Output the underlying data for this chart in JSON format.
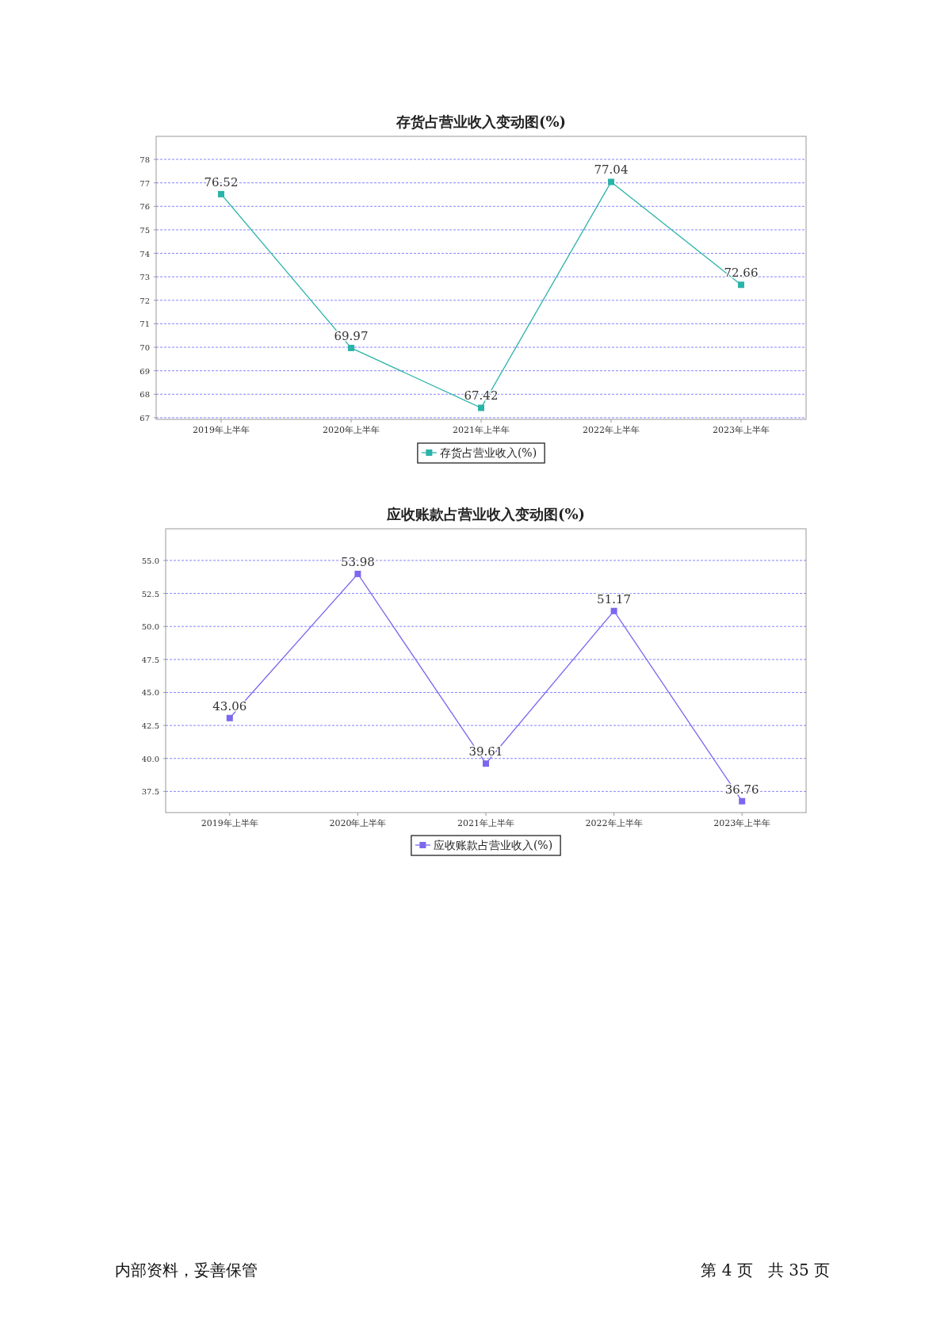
{
  "chart_data": [
    {
      "type": "line",
      "title": "存货占营业收入变动图(%)",
      "categories": [
        "2019年上半年",
        "2020年上半年",
        "2021年上半年",
        "2022年上半年",
        "2023年上半年"
      ],
      "series": [
        {
          "name": "存货占营业收入(%)",
          "color": "#2ab3a8",
          "values": [
            76.52,
            69.97,
            67.42,
            77.04,
            72.66
          ]
        }
      ],
      "ylim": [
        66.93,
        78.98
      ],
      "yticks": [
        67,
        68,
        69,
        70,
        71,
        72,
        73,
        74,
        75,
        76,
        77,
        78
      ],
      "grid": "y",
      "legend": "bottom",
      "marker": "square",
      "data_labels": true
    },
    {
      "type": "line",
      "title": "应收账款占营业收入变动图(%)",
      "categories": [
        "2019年上半年",
        "2020年上半年",
        "2021年上半年",
        "2022年上半年",
        "2023年上半年"
      ],
      "series": [
        {
          "name": "应收账款占营业收入(%)",
          "color": "#7b68ee",
          "values": [
            43.06,
            53.98,
            39.61,
            51.17,
            36.76
          ]
        }
      ],
      "ylim": [
        35.9,
        57.4
      ],
      "yticks": [
        {
          "value": 37.5,
          "label": "37.5"
        },
        {
          "value": 40,
          "label": "40.0"
        },
        {
          "value": 42.5,
          "label": "42.5"
        },
        {
          "value": 45,
          "label": "45.0"
        },
        {
          "value": 47.5,
          "label": "47.5"
        },
        {
          "value": 50,
          "label": "50.0"
        },
        {
          "value": 52.5,
          "label": "52.5"
        },
        {
          "value": 55,
          "label": "55.0"
        }
      ],
      "grid": "y",
      "legend": "bottom",
      "marker": "square",
      "data_labels": true,
      "annotations": [
        "内部资料，妥善保管",
        "第 4 页   共 35 页"
      ]
    }
  ]
}
